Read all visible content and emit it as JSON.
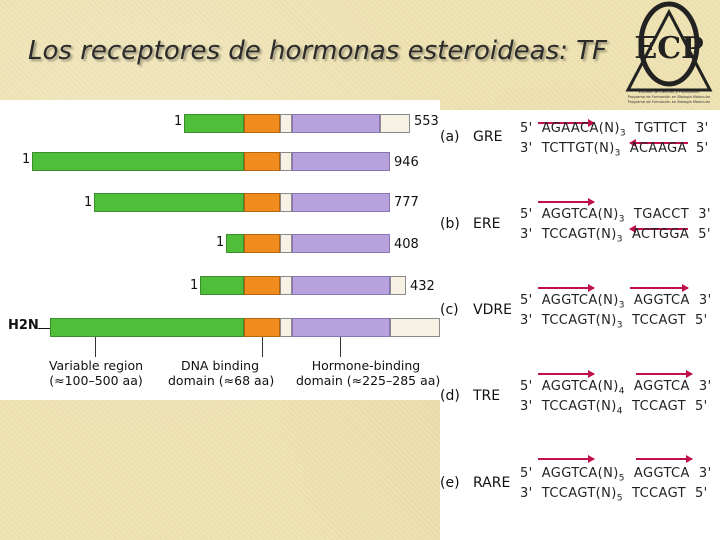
{
  "slide": {
    "title": "Los receptores de hormonas esteroideas: TF"
  },
  "logo": {
    "letters": "ECP",
    "lines": [
      "Escuela de Ciencias y Profesiones",
      "Programa de Formación en Biología Molecular",
      "Programa de Formación en Biología Molecular"
    ]
  },
  "colors": {
    "variable_region": "#4fbf3a",
    "dna_binding": "#f08c1e",
    "hormone_binding": "#b7a2dd",
    "arrow": "#c0114a"
  },
  "receptors": [
    {
      "start": "1",
      "end": "553"
    },
    {
      "start": "1",
      "end": "946"
    },
    {
      "start": "1",
      "end": "777"
    },
    {
      "start": "1",
      "end": "408"
    },
    {
      "start": "1",
      "end": "432"
    },
    {
      "start": "H2N",
      "end": ""
    }
  ],
  "legend": {
    "variable_region": {
      "line1": "Variable region",
      "line2": "(≈100–500 aa)"
    },
    "dna_binding": {
      "line1": "DNA binding",
      "line2": "domain (≈68 aa)"
    },
    "hormone_binding": {
      "line1": "Hormone-binding",
      "line2": "domain (≈225–285 aa)"
    }
  },
  "response_elements": [
    {
      "label": "(a)",
      "name": "GRE",
      "top": {
        "p5": "5'",
        "left": "AGAACA(N)",
        "n": "3",
        "right": "TGTTCT",
        "p3": "3'"
      },
      "bottom": {
        "p5": "3'",
        "left": "TCTTGT(N)",
        "n": "3",
        "right": "ACAAGA",
        "p3": "5'"
      }
    },
    {
      "label": "(b)",
      "name": "ERE",
      "top": {
        "p5": "5'",
        "left": "AGGTCA(N)",
        "n": "3",
        "right": "TGACCT",
        "p3": "3'"
      },
      "bottom": {
        "p5": "3'",
        "left": "TCCAGT(N)",
        "n": "3",
        "right": "ACTGGA",
        "p3": "5'"
      }
    },
    {
      "label": "(c)",
      "name": "VDRE",
      "top": {
        "p5": "5'",
        "left": "AGGTCA(N)",
        "n": "3",
        "right": "AGGTCA",
        "p3": "3'"
      },
      "bottom": {
        "p5": "3'",
        "left": "TCCAGT(N)",
        "n": "3",
        "right": "TCCAGT",
        "p3": "5'"
      }
    },
    {
      "label": "(d)",
      "name": "TRE",
      "top": {
        "p5": "5'",
        "left": "AGGTCA(N)",
        "n": "4",
        "right": "AGGTCA",
        "p3": "3'"
      },
      "bottom": {
        "p5": "3'",
        "left": "TCCAGT(N)",
        "n": "4",
        "right": "TCCAGT",
        "p3": "5'"
      }
    },
    {
      "label": "(e)",
      "name": "RARE",
      "top": {
        "p5": "5'",
        "left": "AGGTCA(N)",
        "n": "5",
        "right": "AGGTCA",
        "p3": "3'"
      },
      "bottom": {
        "p5": "3'",
        "left": "TCCAGT(N)",
        "n": "5",
        "right": "TCCAGT",
        "p3": "5'"
      }
    }
  ]
}
